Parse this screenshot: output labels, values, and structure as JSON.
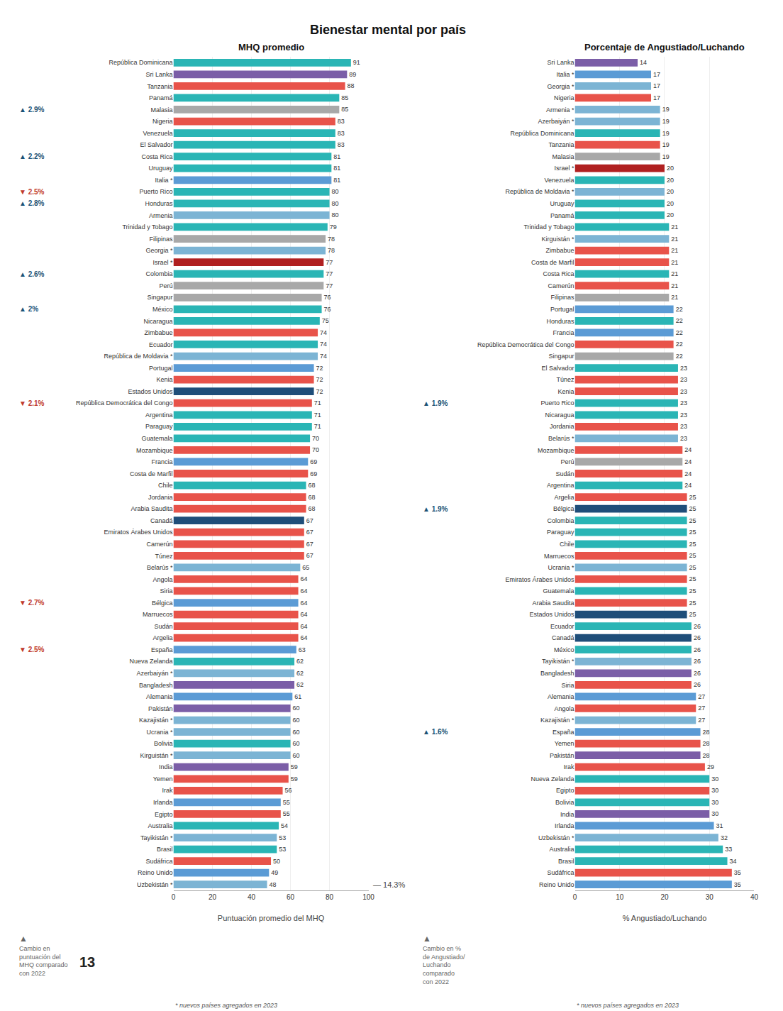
{
  "title": "Bienestar mental por país",
  "chart_data": [
    {
      "type": "bar",
      "orientation": "horizontal",
      "title": "MHQ promedio",
      "xlabel": "Puntuación promedio del MHQ",
      "categories": [
        "República Dominicana",
        "Sri Lanka",
        "Tanzania",
        "Panamá",
        "Malasia",
        "Nigeria",
        "Venezuela",
        "El Salvador",
        "Costa Rica",
        "Uruguay",
        "Italia *",
        "Puerto Rico",
        "Honduras",
        "Armenia",
        "Trinidad y Tobago",
        "Filipinas",
        "Georgia *",
        "Israel *",
        "Colombia",
        "Perú",
        "Singapur",
        "México",
        "Nicaragua",
        "Zimbabue",
        "Ecuador",
        "República de Moldavia *",
        "Portugal",
        "Kenia",
        "Estados Unidos",
        "República Democrática del Congo",
        "Argentina",
        "Paraguay",
        "Guatemala",
        "Mozambique",
        "Francia",
        "Costa de Marfil",
        "Chile",
        "Jordania",
        "Arabia Saudita",
        "Canadá",
        "Emiratos Árabes Unidos",
        "Camerún",
        "Túnez",
        "Belarús *",
        "Angola",
        "Siria",
        "Bélgica",
        "Marruecos",
        "Sudán",
        "Argelia",
        "España",
        "Nueva Zelanda",
        "Azerbaiyán *",
        "Bangladesh",
        "Alemania",
        "Pakistán",
        "Kazajistán *",
        "Ucrania *",
        "Bolivia",
        "Kirguistán *",
        "India",
        "Yemen",
        "Irak",
        "Irlanda",
        "Egipto",
        "Australia",
        "Tayikistán *",
        "Brasil",
        "Sudáfrica",
        "Reino Unido",
        "Uzbekistán *"
      ],
      "values": [
        91,
        89,
        88,
        85,
        85,
        83,
        83,
        83,
        81,
        81,
        81,
        80,
        80,
        80,
        79,
        78,
        78,
        77,
        77,
        77,
        76,
        76,
        75,
        74,
        74,
        74,
        72,
        72,
        72,
        71,
        71,
        71,
        70,
        70,
        69,
        69,
        68,
        68,
        68,
        67,
        67,
        67,
        67,
        65,
        64,
        64,
        64,
        64,
        64,
        64,
        63,
        62,
        62,
        62,
        61,
        60,
        60,
        60,
        60,
        60,
        59,
        59,
        56,
        55,
        55,
        54,
        53,
        53,
        50,
        49,
        48
      ],
      "colors": [
        "#2ab5b5",
        "#7b5ea7",
        "#e8534a",
        "#2ab5b5",
        "#a8a8a8",
        "#e8534a",
        "#2ab5b5",
        "#2ab5b5",
        "#2ab5b5",
        "#2ab5b5",
        "#5b9bd5",
        "#2ab5b5",
        "#2ab5b5",
        "#7cb4d4",
        "#2ab5b5",
        "#a8a8a8",
        "#7cb4d4",
        "#b02020",
        "#2ab5b5",
        "#a8a8a8",
        "#a8a8a8",
        "#2ab5b5",
        "#2ab5b5",
        "#e8534a",
        "#2ab5b5",
        "#7cb4d4",
        "#5b9bd5",
        "#e8534a",
        "#1f4e79",
        "#e8534a",
        "#2ab5b5",
        "#2ab5b5",
        "#2ab5b5",
        "#e8534a",
        "#5b9bd5",
        "#e8534a",
        "#2ab5b5",
        "#e8534a",
        "#e8534a",
        "#1f4e79",
        "#e8534a",
        "#e8534a",
        "#e8534a",
        "#7cb4d4",
        "#e8534a",
        "#e8534a",
        "#5b9bd5",
        "#e8534a",
        "#e8534a",
        "#e8534a",
        "#5b9bd5",
        "#2ab5b5",
        "#7cb4d4",
        "#7b5ea7",
        "#5b9bd5",
        "#7b5ea7",
        "#7cb4d4",
        "#7cb4d4",
        "#2ab5b5",
        "#7cb4d4",
        "#7b5ea7",
        "#e8534a",
        "#e8534a",
        "#5b9bd5",
        "#e8534a",
        "#2ab5b5",
        "#7cb4d4",
        "#2ab5b5",
        "#e8534a",
        "#5b9bd5",
        "#7cb4d4"
      ],
      "data_labels": true,
      "xlim": [
        0,
        100
      ],
      "xticks": [
        0,
        20,
        40,
        60,
        80,
        100
      ],
      "grid": true,
      "annotations": [
        {
          "text": "▲ 2.9%",
          "category": "Malasia",
          "color": "#1a5276"
        },
        {
          "text": "▲ 2.2%",
          "category": "Costa Rica",
          "color": "#1a5276"
        },
        {
          "text": "▼ 2.5%",
          "category": "Puerto Rico",
          "color": "#c0392b"
        },
        {
          "text": "▲ 2.8%",
          "category": "Honduras",
          "color": "#1a5276"
        },
        {
          "text": "▲ 2.6%",
          "category": "Colombia",
          "color": "#1a5276"
        },
        {
          "text": "▲ 2%",
          "category": "México",
          "color": "#1a5276"
        },
        {
          "text": "▼ 2.1%",
          "category": "República Democrática del Congo",
          "color": "#c0392b"
        },
        {
          "text": "▼ 2.7%",
          "category": "Bélgica",
          "color": "#c0392b"
        },
        {
          "text": "▼ 2.5%",
          "category": "España",
          "color": "#c0392b"
        }
      ],
      "note_symbol": "▲",
      "note": "Cambio en\npuntuación del\nMHQ comparado\ncon 2022",
      "note_value": "13",
      "side_label": "— 14.3%",
      "footnote": "* nuevos países agregados en 2023"
    },
    {
      "type": "bar",
      "orientation": "horizontal",
      "title": "Porcentaje de Angustiado/Luchando",
      "xlabel": "% Angustiado/Luchando",
      "categories": [
        "Sri Lanka",
        "Italia *",
        "Georgia *",
        "Nigeria",
        "Armenia *",
        "Azerbaiyán *",
        "República Dominicana",
        "Tanzania",
        "Malasia",
        "Israel *",
        "Venezuela",
        "República de Moldavia *",
        "Uruguay",
        "Panamá",
        "Trinidad y Tobago",
        "Kirguistán *",
        "Zimbabue",
        "Costa de Marfil",
        "Costa Rica",
        "Camerún",
        "Filipinas",
        "Portugal",
        "Honduras",
        "Francia",
        "República Democrática del Congo",
        "Singapur",
        "El Salvador",
        "Túnez",
        "Kenia",
        "Puerto Rico",
        "Nicaragua",
        "Jordania",
        "Belarús *",
        "Mozambique",
        "Perú",
        "Sudán",
        "Argentina",
        "Argelia",
        "Bélgica",
        "Colombia",
        "Paraguay",
        "Chile",
        "Marruecos",
        "Ucrania *",
        "Emiratos Árabes Unidos",
        "Guatemala",
        "Arabia Saudita",
        "Estados Unidos",
        "Ecuador",
        "Canadá",
        "México",
        "Tayikistán *",
        "Bangladesh",
        "Siria",
        "Alemania",
        "Angola",
        "Kazajistán *",
        "España",
        "Yemen",
        "Pakistán",
        "Irak",
        "Nueva Zelanda",
        "Egipto",
        "Bolivia",
        "India",
        "Irlanda",
        "Uzbekistán *",
        "Australia",
        "Brasil",
        "Sudáfrica",
        "Reino Unido"
      ],
      "values": [
        14,
        17,
        17,
        17,
        19,
        19,
        19,
        19,
        19,
        20,
        20,
        20,
        20,
        20,
        21,
        21,
        21,
        21,
        21,
        21,
        21,
        22,
        22,
        22,
        22,
        22,
        23,
        23,
        23,
        23,
        23,
        23,
        23,
        24,
        24,
        24,
        24,
        25,
        25,
        25,
        25,
        25,
        25,
        25,
        25,
        25,
        25,
        25,
        26,
        26,
        26,
        26,
        26,
        26,
        27,
        27,
        27,
        28,
        28,
        28,
        29,
        30,
        30,
        30,
        30,
        31,
        32,
        33,
        34,
        35,
        35
      ],
      "colors": [
        "#7b5ea7",
        "#5b9bd5",
        "#7cb4d4",
        "#e8534a",
        "#7cb4d4",
        "#7cb4d4",
        "#2ab5b5",
        "#e8534a",
        "#a8a8a8",
        "#b02020",
        "#2ab5b5",
        "#7cb4d4",
        "#2ab5b5",
        "#2ab5b5",
        "#2ab5b5",
        "#7cb4d4",
        "#e8534a",
        "#e8534a",
        "#2ab5b5",
        "#e8534a",
        "#a8a8a8",
        "#5b9bd5",
        "#2ab5b5",
        "#5b9bd5",
        "#e8534a",
        "#a8a8a8",
        "#2ab5b5",
        "#e8534a",
        "#e8534a",
        "#2ab5b5",
        "#2ab5b5",
        "#e8534a",
        "#7cb4d4",
        "#e8534a",
        "#a8a8a8",
        "#e8534a",
        "#2ab5b5",
        "#e8534a",
        "#1f4e79",
        "#2ab5b5",
        "#2ab5b5",
        "#2ab5b5",
        "#e8534a",
        "#7cb4d4",
        "#e8534a",
        "#2ab5b5",
        "#e8534a",
        "#1f4e79",
        "#2ab5b5",
        "#1f4e79",
        "#2ab5b5",
        "#7cb4d4",
        "#7b5ea7",
        "#e8534a",
        "#5b9bd5",
        "#e8534a",
        "#7cb4d4",
        "#5b9bd5",
        "#e8534a",
        "#7b5ea7",
        "#e8534a",
        "#2ab5b5",
        "#e8534a",
        "#2ab5b5",
        "#7b5ea7",
        "#5b9bd5",
        "#7cb4d4",
        "#2ab5b5",
        "#2ab5b5",
        "#e8534a",
        "#5b9bd5"
      ],
      "data_labels": true,
      "xlim": [
        0,
        40
      ],
      "xticks": [
        0,
        10,
        20,
        30,
        40
      ],
      "grid": true,
      "annotations": [
        {
          "text": "▲ 1.9%",
          "category": "Puerto Rico",
          "color": "#1a5276"
        },
        {
          "text": "▲ 1.9%",
          "category": "Bélgica",
          "color": "#1a5276"
        },
        {
          "text": "▲ 1.6%",
          "category": "España",
          "color": "#1a5276"
        }
      ],
      "note_symbol": "▲",
      "note": "Cambio en %\nde Angustiado/\nLuchando\ncomparado\ncon 2022",
      "footnote": "* nuevos países agregados en 2023"
    }
  ]
}
